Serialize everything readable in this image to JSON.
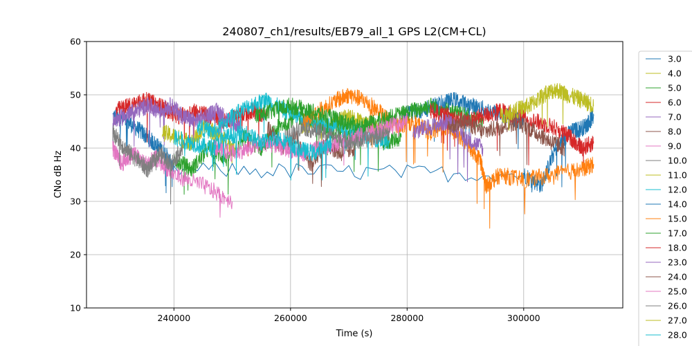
{
  "chart_data": {
    "type": "line",
    "title": "240807_ch1/results/EB79_all_1 GPS L2(CM+CL)",
    "xlabel": "Time (s)",
    "ylabel": "CNo dB Hz",
    "xlim": [
      225000,
      317000
    ],
    "ylim": [
      10,
      60
    ],
    "xticks": [
      {
        "value": 240000,
        "label": "240000"
      },
      {
        "value": 260000,
        "label": "260000"
      },
      {
        "value": 280000,
        "label": "280000"
      },
      {
        "value": 300000,
        "label": "300000"
      }
    ],
    "yticks": [
      {
        "value": 10,
        "label": "10"
      },
      {
        "value": 20,
        "label": "20"
      },
      {
        "value": 30,
        "label": "30"
      },
      {
        "value": 40,
        "label": "40"
      },
      {
        "value": 50,
        "label": "50"
      },
      {
        "value": 60,
        "label": "60"
      }
    ],
    "grid": true,
    "legend_position": "right-outside",
    "series": [
      {
        "name": "3.0",
        "color": "#1f77b4",
        "x": [
          229500,
          232000,
          234500,
          236500,
          238500,
          240000,
          300000,
          303000,
          305500,
          308000,
          310500,
          312000
        ],
        "y": [
          46,
          45,
          43,
          41,
          39,
          36,
          35,
          33,
          40,
          43,
          44,
          46
        ]
      },
      {
        "name": "4.0",
        "color": "#bcbd22",
        "x": [
          262000,
          264500,
          267000,
          269500,
          272000,
          274500,
          277000
        ],
        "y": [
          44,
          45,
          44,
          46,
          45,
          44,
          43
        ]
      },
      {
        "name": "5.0",
        "color": "#2ca02c",
        "x": [
          240000,
          243000,
          246000,
          249000,
          252000,
          255000,
          258000,
          261000,
          264000,
          267000,
          270000,
          273000,
          276000,
          279000
        ],
        "y": [
          38,
          36,
          40,
          38,
          42,
          40,
          44,
          46,
          45,
          43,
          42,
          44,
          41,
          42
        ]
      },
      {
        "name": "6.0",
        "color": "#d62728",
        "x": [
          230000,
          232500,
          235000,
          237500,
          239000,
          241000,
          243500,
          246000,
          248500,
          251000,
          253500,
          256000
        ],
        "y": [
          47,
          48,
          49,
          48,
          47,
          46,
          47,
          46,
          45,
          46,
          47,
          46
        ]
      },
      {
        "name": "7.0",
        "color": "#9467bd",
        "x": [
          229500,
          231500,
          233500,
          235500,
          237500,
          239500,
          241500,
          243500,
          245500,
          247500,
          249500,
          251500
        ],
        "y": [
          45,
          46,
          47,
          48,
          47,
          48,
          46,
          45,
          46,
          47,
          45,
          44
        ]
      },
      {
        "name": "8.0",
        "color": "#8c564b",
        "x": [
          256000,
          258500,
          261000,
          263500,
          266000,
          268500,
          271000
        ],
        "y": [
          44,
          40,
          42,
          37,
          41,
          39,
          40
        ]
      },
      {
        "name": "9.0",
        "color": "#e377c2",
        "x": [
          229500,
          231000,
          233000,
          235000,
          237000,
          240000,
          245000,
          250000
        ],
        "y": [
          40,
          37,
          39,
          37,
          38,
          35,
          33,
          30
        ]
      },
      {
        "name": "10.0",
        "color": "#7f7f7f",
        "x": [
          229500,
          231500,
          233500,
          235500,
          237500,
          239500,
          241500
        ],
        "y": [
          43,
          40,
          38,
          36,
          39,
          37,
          40
        ]
      },
      {
        "name": "11.0",
        "color": "#bcbd22",
        "x": [
          238000,
          240500,
          243000,
          245500,
          248000,
          250500
        ],
        "y": [
          43,
          42,
          41,
          44,
          42,
          40
        ]
      },
      {
        "name": "12.0",
        "color": "#17becf",
        "x": [
          244000,
          247000,
          250000,
          253000,
          256000,
          259000,
          262000,
          265000,
          268000,
          271000,
          274000,
          277000
        ],
        "y": [
          44,
          43,
          46,
          48,
          49,
          47,
          46,
          45,
          44,
          43,
          42,
          41
        ]
      },
      {
        "name": "14.0",
        "color": "#1f77b4",
        "x": [
          279000,
          282000,
          285000,
          288000,
          291000,
          294000,
          297000,
          300000
        ],
        "y": [
          46,
          47,
          48,
          49,
          48,
          47,
          46,
          45
        ]
      },
      {
        "name": "15.0",
        "color": "#ff7f0e",
        "x": [
          262000,
          265000,
          268000,
          270000,
          272500,
          275000,
          278000,
          281000,
          284000,
          287000,
          290000,
          292500,
          293500,
          296000,
          300000,
          305000,
          310000,
          312000
        ],
        "y": [
          45,
          47,
          49,
          50,
          49,
          47,
          44,
          45,
          43,
          44,
          41,
          38,
          33,
          35,
          34,
          35,
          36,
          37
        ]
      },
      {
        "name": "17.0",
        "color": "#2ca02c",
        "x": [
          254000,
          257000,
          260000,
          263000,
          266000,
          269000,
          272000,
          275000,
          278000,
          281000,
          284000,
          287000,
          290000,
          293000
        ],
        "y": [
          46,
          47,
          48,
          47,
          46,
          45,
          44,
          45,
          46,
          47,
          48,
          47,
          46,
          45
        ]
      },
      {
        "name": "18.0",
        "color": "#d62728",
        "x": [
          284000,
          287000,
          290000,
          293000,
          296000,
          299000,
          302000,
          305000,
          308000,
          310000,
          312000
        ],
        "y": [
          47,
          46,
          45,
          46,
          47,
          46,
          45,
          44,
          42,
          40,
          41
        ]
      },
      {
        "name": "23.0",
        "color": "#9467bd",
        "x": [
          281000,
          284000,
          287000,
          290000,
          293000
        ],
        "y": [
          43,
          44,
          45,
          42,
          40
        ]
      },
      {
        "name": "24.0",
        "color": "#8c564b",
        "x": [
          287000,
          290000,
          293000,
          296000,
          299000,
          302000,
          305000,
          307000
        ],
        "y": [
          44,
          45,
          43,
          44,
          45,
          43,
          41,
          40
        ]
      },
      {
        "name": "25.0",
        "color": "#e377c2",
        "x": [
          247000,
          250000,
          253000,
          256000,
          259000,
          262000,
          265000,
          268000,
          271000,
          274000,
          277000,
          280000
        ],
        "y": [
          40,
          39,
          40,
          41,
          40,
          39,
          40,
          41,
          42,
          43,
          44,
          45
        ]
      },
      {
        "name": "26.0",
        "color": "#7f7f7f",
        "x": [
          259000,
          262000,
          265000,
          268000,
          271000,
          274000,
          277000
        ],
        "y": [
          42,
          44,
          43,
          42,
          41,
          42,
          43
        ]
      },
      {
        "name": "27.0",
        "color": "#bcbd22",
        "x": [
          296000,
          298500,
          301000,
          303500,
          305500,
          307500,
          310000,
          312000
        ],
        "y": [
          46,
          47,
          48,
          50,
          51,
          50,
          49,
          48
        ]
      },
      {
        "name": "28.0",
        "color": "#17becf",
        "x": [
          240000,
          243000,
          246000,
          249000,
          252000,
          255000,
          258000,
          261000,
          264000,
          267000
        ],
        "y": [
          42,
          41,
          40,
          42,
          43,
          41,
          42,
          40,
          39,
          41
        ]
      }
    ]
  }
}
